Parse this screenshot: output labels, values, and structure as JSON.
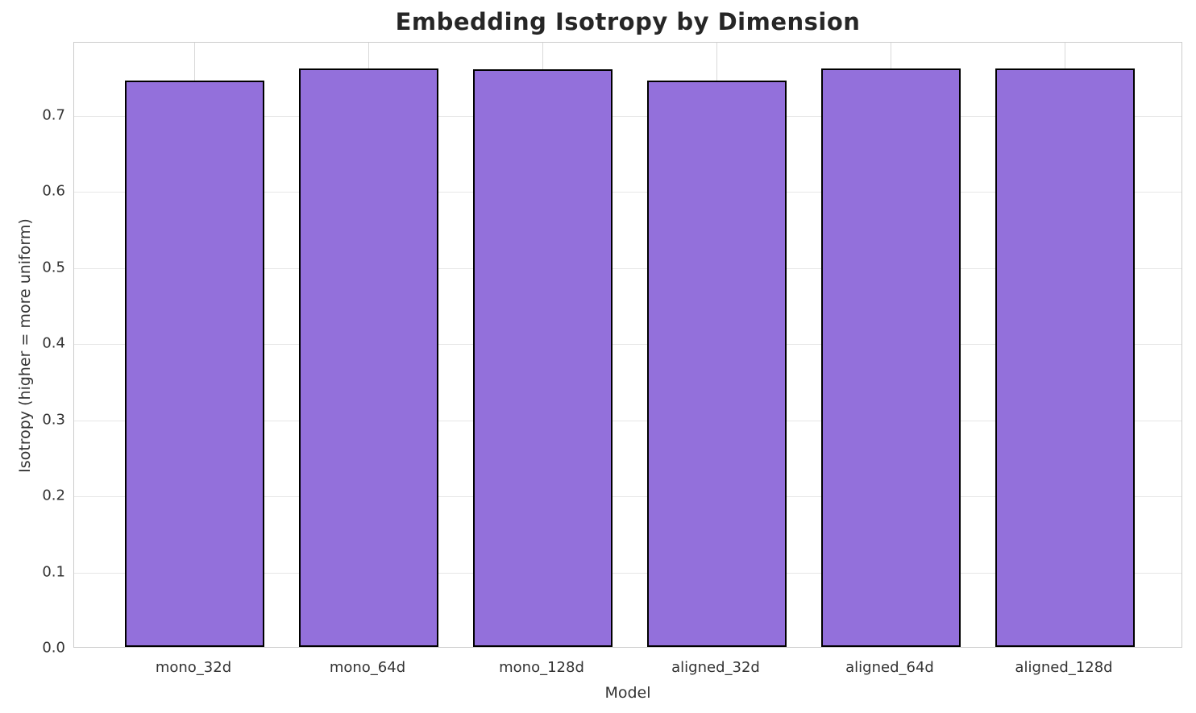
{
  "chart_data": {
    "type": "bar",
    "title": "Embedding Isotropy by Dimension",
    "xlabel": "Model",
    "ylabel": "Isotropy (higher = more uniform)",
    "categories": [
      "mono_32d",
      "mono_64d",
      "mono_128d",
      "aligned_32d",
      "aligned_64d",
      "aligned_128d"
    ],
    "values": [
      0.744,
      0.76,
      0.759,
      0.744,
      0.76,
      0.76
    ],
    "y_ticks": [
      0.0,
      0.1,
      0.2,
      0.3,
      0.4,
      0.5,
      0.6,
      0.7
    ],
    "ylim": [
      0,
      0.796
    ],
    "grid": "both",
    "legend": "none",
    "colors": {
      "bar_fill": "#9370DB",
      "bar_edge": "#000000",
      "grid_horizontal": "#e7e7e7",
      "grid_vertical": "#d9d9d9",
      "spine": "#cccccc",
      "title_text": "#262626",
      "tick_text": "#333333",
      "background": "#ffffff"
    }
  }
}
